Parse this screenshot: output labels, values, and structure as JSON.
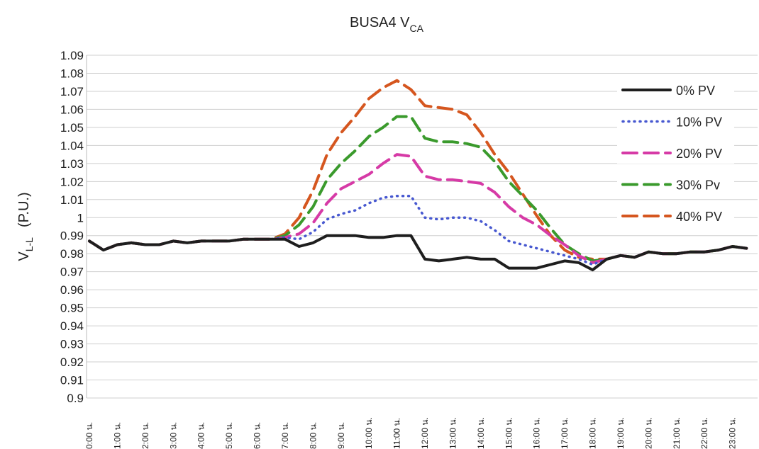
{
  "chart_data": {
    "type": "line",
    "title": {
      "text": "BUSA4 V",
      "sub": "CA"
    },
    "ylabel": {
      "text": "V",
      "sub": "L-L",
      "rest": "(P.U.)"
    },
    "categories": [
      "0:00 น.",
      null,
      "1:00 น.",
      null,
      "2:00 น.",
      null,
      "3:00 น.",
      null,
      "4:00 น.",
      null,
      "5:00 น.",
      null,
      "6:00 น.",
      null,
      "7:00 น.",
      null,
      "8:00 น.",
      null,
      "9:00 น.",
      null,
      "10:00 น.",
      null,
      "11:00 น.",
      null,
      "12:00 น.",
      null,
      "13:00 น.",
      null,
      "14:00 น.",
      null,
      "15:00 น.",
      null,
      "16:00 น.",
      null,
      "17:00 น.",
      null,
      "18:00 น.",
      null,
      "19:00 น.",
      null,
      "20:00 น.",
      null,
      "21:00 น.",
      null,
      "22:00 น.",
      null,
      "23:00 น.",
      null
    ],
    "ylim": [
      0.9,
      1.09
    ],
    "yticks": [
      0.9,
      0.91,
      0.92,
      0.93,
      0.94,
      0.95,
      0.96,
      0.97,
      0.98,
      0.99,
      1,
      1.01,
      1.02,
      1.03,
      1.04,
      1.05,
      1.06,
      1.07,
      1.08,
      1.09
    ],
    "grid": true,
    "legend": "right",
    "series": [
      {
        "name": "0% PV",
        "color": "#1e1e1e",
        "style": "solid",
        "values": [
          0.987,
          0.982,
          0.985,
          0.986,
          0.985,
          0.985,
          0.987,
          0.986,
          0.987,
          0.987,
          0.987,
          0.988,
          0.988,
          0.988,
          0.988,
          0.984,
          0.986,
          0.99,
          0.99,
          0.99,
          0.989,
          0.989,
          0.99,
          0.99,
          0.977,
          0.976,
          0.977,
          0.978,
          0.977,
          0.977,
          0.972,
          0.972,
          0.972,
          0.974,
          0.976,
          0.975,
          0.971,
          0.977,
          0.979,
          0.978,
          0.981,
          0.98,
          0.98,
          0.981,
          0.981,
          0.982,
          0.984,
          0.983
        ]
      },
      {
        "name": "10% PV",
        "color": "#4758d0",
        "style": "dotted",
        "values": [
          0.987,
          0.982,
          0.985,
          0.986,
          0.985,
          0.985,
          0.987,
          0.986,
          0.987,
          0.987,
          0.987,
          0.988,
          0.988,
          0.988,
          0.989,
          0.988,
          0.992,
          0.999,
          1.002,
          1.004,
          1.008,
          1.011,
          1.012,
          1.012,
          1.0,
          0.999,
          1.0,
          1.0,
          0.998,
          0.993,
          0.987,
          0.985,
          0.983,
          0.981,
          0.979,
          0.977,
          0.974,
          0.977,
          0.979,
          0.978,
          0.981,
          0.98,
          0.98,
          0.981,
          0.981,
          0.982,
          0.984,
          0.983
        ]
      },
      {
        "name": "20% PV",
        "color": "#d63aa6",
        "style": "dashed",
        "values": [
          0.987,
          0.982,
          0.985,
          0.986,
          0.985,
          0.985,
          0.987,
          0.986,
          0.987,
          0.987,
          0.987,
          0.988,
          0.988,
          0.988,
          0.989,
          0.991,
          0.997,
          1.008,
          1.016,
          1.02,
          1.024,
          1.03,
          1.035,
          1.034,
          1.023,
          1.021,
          1.021,
          1.02,
          1.019,
          1.014,
          1.006,
          1.0,
          0.996,
          0.99,
          0.985,
          0.979,
          0.975,
          0.977,
          0.979,
          0.978,
          0.981,
          0.98,
          0.98,
          0.981,
          0.981,
          0.982,
          0.984,
          0.983
        ]
      },
      {
        "name": "30% Pv",
        "color": "#3a9a2c",
        "style": "dashed",
        "values": [
          0.987,
          0.982,
          0.985,
          0.986,
          0.985,
          0.985,
          0.987,
          0.986,
          0.987,
          0.987,
          0.987,
          0.988,
          0.988,
          0.988,
          0.99,
          0.996,
          1.006,
          1.021,
          1.03,
          1.037,
          1.045,
          1.05,
          1.056,
          1.056,
          1.044,
          1.042,
          1.042,
          1.041,
          1.039,
          1.031,
          1.02,
          1.012,
          1.004,
          0.994,
          0.985,
          0.98,
          0.976,
          0.977,
          0.979,
          0.978,
          0.981,
          0.98,
          0.98,
          0.981,
          0.981,
          0.982,
          0.984,
          0.983
        ]
      },
      {
        "name": "40% PV",
        "color": "#d5561f",
        "style": "dashed",
        "values": [
          0.987,
          0.982,
          0.985,
          0.986,
          0.985,
          0.985,
          0.987,
          0.986,
          0.987,
          0.987,
          0.987,
          0.988,
          0.988,
          0.988,
          0.991,
          1.0,
          1.015,
          1.035,
          1.047,
          1.056,
          1.066,
          1.072,
          1.076,
          1.071,
          1.062,
          1.061,
          1.06,
          1.057,
          1.047,
          1.035,
          1.025,
          1.013,
          1.001,
          0.99,
          0.982,
          0.978,
          0.977,
          0.977,
          0.979,
          0.978,
          0.981,
          0.98,
          0.98,
          0.981,
          0.981,
          0.982,
          0.984,
          0.983
        ]
      }
    ]
  }
}
